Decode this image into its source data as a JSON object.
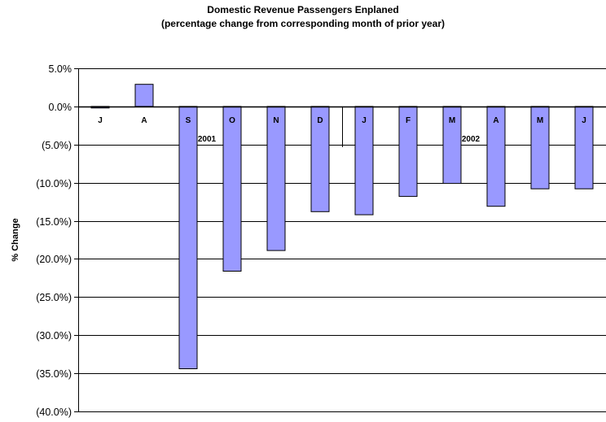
{
  "chart_data": {
    "type": "bar",
    "title": "Domestic Revenue Passengers Enplaned",
    "subtitle": "(percentage change from corresponding month of prior year)",
    "xlabel": "",
    "ylabel": "% Change",
    "ylim": [
      -40,
      5
    ],
    "yticks": [
      5,
      0,
      -5,
      -10,
      -15,
      -20,
      -25,
      -30,
      -35,
      -40
    ],
    "ytick_labels": [
      "5.0%",
      "0.0%",
      "(5.0%)",
      "(10.0%)",
      "(15.0%)",
      "(20.0%)",
      "(25.0%)",
      "(30.0%)",
      "(35.0%)",
      "(40.0%)"
    ],
    "categories": [
      "J",
      "A",
      "S",
      "O",
      "N",
      "D",
      "J",
      "F",
      "M",
      "A",
      "M",
      "J"
    ],
    "values": [
      -0.2,
      2.9,
      -34.4,
      -21.6,
      -18.9,
      -13.8,
      -14.2,
      -11.8,
      -10.1,
      -13.1,
      -10.8,
      -10.8
    ],
    "year_labels": [
      {
        "text": "2001",
        "after_index": 2
      },
      {
        "text": "2002",
        "after_index": 8
      }
    ],
    "bar_color": "#9999ff",
    "grid": true,
    "legend": "none"
  }
}
